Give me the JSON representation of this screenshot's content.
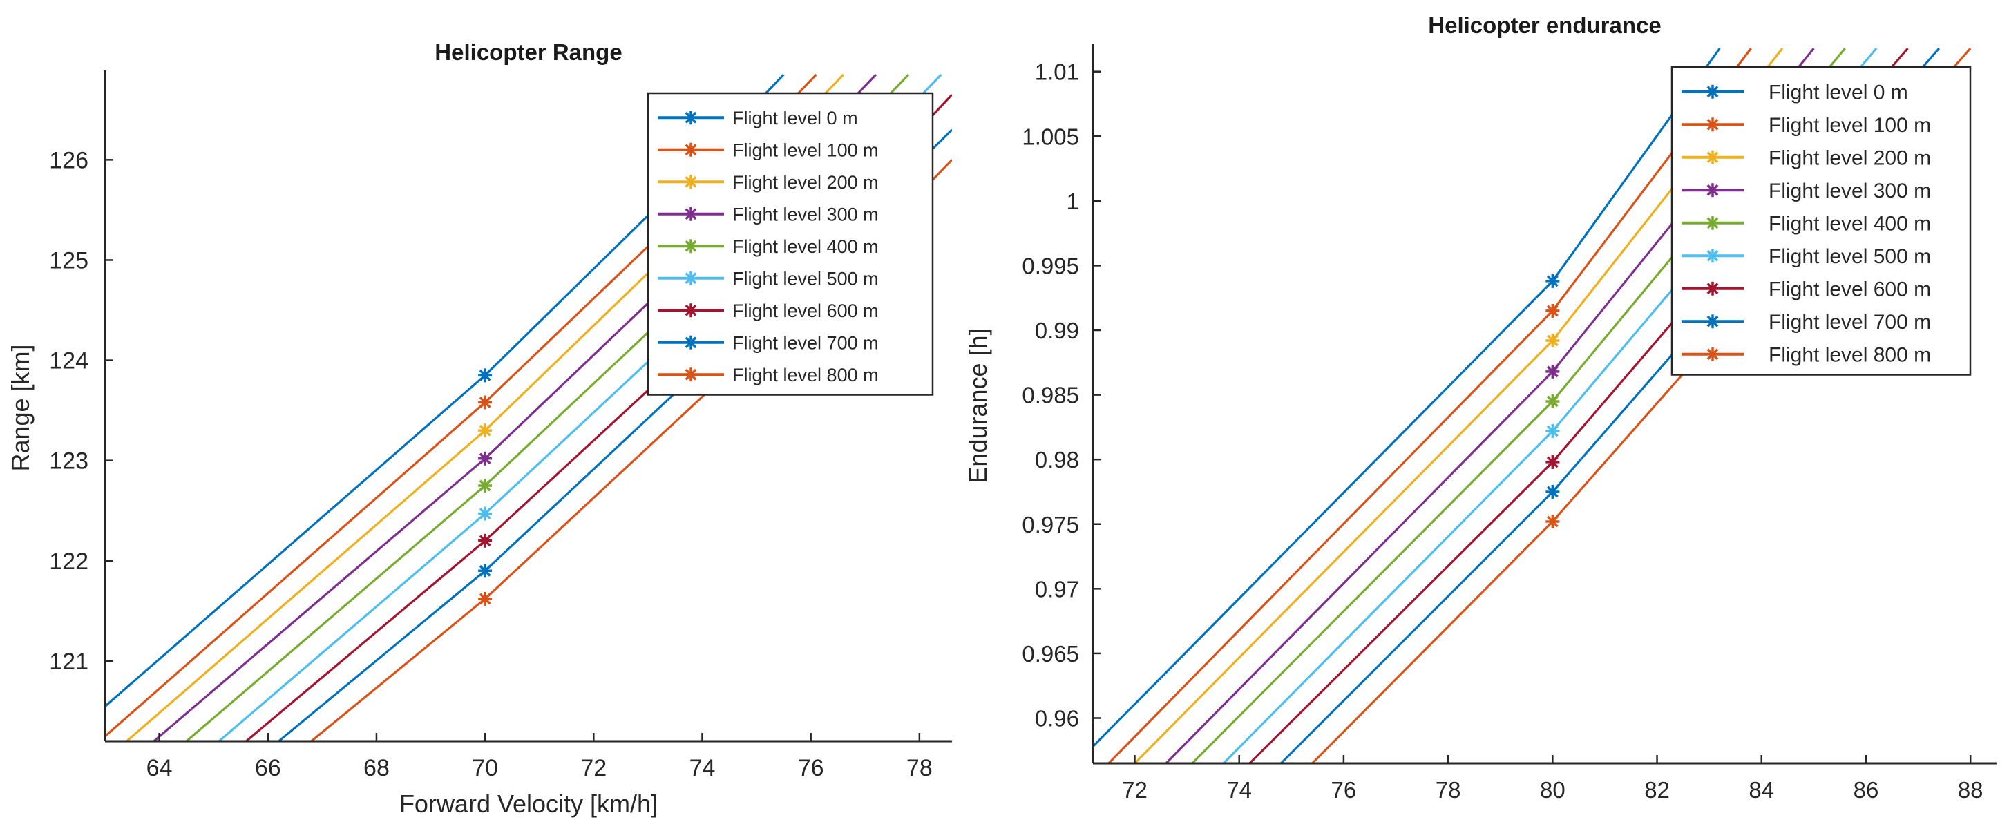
{
  "chart_data": [
    {
      "type": "line",
      "title": "Helicopter Range",
      "xlabel": "Forward Velocity [km/h]",
      "ylabel": "Range [km]",
      "xlim": [
        63,
        78.6
      ],
      "ylim": [
        120.2,
        126.85
      ],
      "xticks": [
        64,
        66,
        68,
        70,
        72,
        74,
        76,
        78
      ],
      "yticks": [
        121,
        122,
        123,
        124,
        125,
        126
      ],
      "legend_position": "top-right",
      "marker_x": 70,
      "series": [
        {
          "name": "Flight level 0 m",
          "color": "#0072BD",
          "points": [
            [
              62.9,
              120.5
            ],
            [
              70,
              123.85
            ],
            [
              73.2,
              125.55
            ],
            [
              75.5,
              126.85
            ]
          ]
        },
        {
          "name": "Flight level 100 m",
          "color": "#D95319",
          "points": [
            [
              62.9,
              120.2
            ],
            [
              70,
              123.58
            ],
            [
              73.8,
              125.55
            ],
            [
              76.1,
              126.85
            ]
          ]
        },
        {
          "name": "Flight level 200 m",
          "color": "#EDB120",
          "points": [
            [
              63.4,
              120.2
            ],
            [
              70,
              123.3
            ],
            [
              74.3,
              125.55
            ],
            [
              76.6,
              126.85
            ]
          ]
        },
        {
          "name": "Flight level 300 m",
          "color": "#7E2F8E",
          "points": [
            [
              63.9,
              120.2
            ],
            [
              70,
              123.02
            ],
            [
              74.9,
              125.55
            ],
            [
              77.2,
              126.85
            ]
          ]
        },
        {
          "name": "Flight level 400 m",
          "color": "#77AC30",
          "points": [
            [
              64.5,
              120.2
            ],
            [
              70,
              122.75
            ],
            [
              75.5,
              125.55
            ],
            [
              77.8,
              126.85
            ]
          ]
        },
        {
          "name": "Flight level 500 m",
          "color": "#4DBEEE",
          "points": [
            [
              65.1,
              120.2
            ],
            [
              70,
              122.47
            ],
            [
              76.1,
              125.55
            ],
            [
              78.4,
              126.85
            ]
          ]
        },
        {
          "name": "Flight level 600 m",
          "color": "#A2142F",
          "points": [
            [
              65.6,
              120.2
            ],
            [
              70,
              122.2
            ],
            [
              76.7,
              125.55
            ],
            [
              78.6,
              126.65
            ]
          ]
        },
        {
          "name": "Flight level 700 m",
          "color": "#0072BD",
          "points": [
            [
              66.2,
              120.2
            ],
            [
              70,
              121.9
            ],
            [
              77.2,
              125.55
            ],
            [
              78.6,
              126.3
            ]
          ]
        },
        {
          "name": "Flight level 800 m",
          "color": "#D95319",
          "points": [
            [
              66.8,
              120.2
            ],
            [
              70,
              121.62
            ],
            [
              77.8,
              125.55
            ],
            [
              78.6,
              126.0
            ]
          ]
        }
      ]
    },
    {
      "type": "line",
      "title": "Helicopter endurance",
      "xlabel": "",
      "ylabel": "Endurance [h]",
      "xlim": [
        71.2,
        88.5
      ],
      "ylim": [
        0.9565,
        1.0118
      ],
      "xticks": [
        72,
        74,
        76,
        78,
        80,
        82,
        84,
        86,
        88
      ],
      "yticks": [
        "0.96",
        "0.965",
        "0.97",
        "0.975",
        "0.98",
        "0.985",
        "0.99",
        "0.995",
        "1",
        "1.005",
        "1.01"
      ],
      "legend_position": "top-right",
      "marker_x": 80,
      "series": [
        {
          "name": "Flight level 0 m",
          "color": "#0072BD",
          "points": [
            [
              71.2,
              0.9578
            ],
            [
              80,
              0.9938
            ],
            [
              83.2,
              1.0118
            ]
          ]
        },
        {
          "name": "Flight level 100 m",
          "color": "#D95319",
          "points": [
            [
              71.5,
              0.9565
            ],
            [
              80,
              0.9915
            ],
            [
              83.8,
              1.0118
            ]
          ]
        },
        {
          "name": "Flight level 200 m",
          "color": "#EDB120",
          "points": [
            [
              72.0,
              0.9565
            ],
            [
              80,
              0.9892
            ],
            [
              84.4,
              1.0118
            ]
          ]
        },
        {
          "name": "Flight level 300 m",
          "color": "#7E2F8E",
          "points": [
            [
              72.6,
              0.9565
            ],
            [
              80,
              0.9868
            ],
            [
              85.0,
              1.0118
            ]
          ]
        },
        {
          "name": "Flight level 400 m",
          "color": "#77AC30",
          "points": [
            [
              73.1,
              0.9565
            ],
            [
              80,
              0.9845
            ],
            [
              85.6,
              1.0118
            ]
          ]
        },
        {
          "name": "Flight level 500 m",
          "color": "#4DBEEE",
          "points": [
            [
              73.7,
              0.9565
            ],
            [
              80,
              0.9822
            ],
            [
              86.2,
              1.0118
            ]
          ]
        },
        {
          "name": "Flight level 600 m",
          "color": "#A2142F",
          "points": [
            [
              74.2,
              0.9565
            ],
            [
              80,
              0.9798
            ],
            [
              86.8,
              1.0118
            ]
          ]
        },
        {
          "name": "Flight level 700 m",
          "color": "#0072BD",
          "points": [
            [
              74.8,
              0.9565
            ],
            [
              80,
              0.9775
            ],
            [
              87.4,
              1.0118
            ]
          ]
        },
        {
          "name": "Flight level 800 m",
          "color": "#D95319",
          "points": [
            [
              75.4,
              0.9565
            ],
            [
              80,
              0.9752
            ],
            [
              88.0,
              1.0118
            ]
          ]
        }
      ]
    }
  ]
}
